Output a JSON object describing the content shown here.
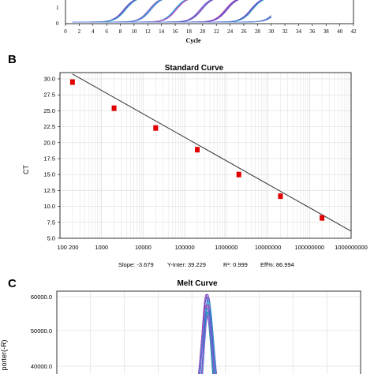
{
  "panels": {
    "a": {
      "xlabel": "Cycle",
      "ytick_labels": [
        "1",
        "0"
      ],
      "xtick_labels": [
        "0",
        "2",
        "4",
        "6",
        "8",
        "10",
        "12",
        "14",
        "16",
        "18",
        "20",
        "22",
        "24",
        "26",
        "28",
        "30",
        "32",
        "34",
        "36",
        "38",
        "40",
        "42"
      ]
    },
    "b": {
      "letter": "B",
      "title": "Standard Curve",
      "ylabel": "CT",
      "ytick_labels": [
        "30.0",
        "27.5",
        "25.0",
        "22.5",
        "20.0",
        "17.5",
        "15.0",
        "12.5",
        "10.0",
        "7.5",
        "5.0"
      ],
      "xtick_labels": [
        "100 200",
        "1000",
        "10000",
        "100000",
        "1000000",
        "10000000",
        "100000000",
        "1000000000"
      ],
      "stats": {
        "slope": "Slope: -3.679",
        "yinter": "Y-Inter: 39.229",
        "r2": "R²: 0.999",
        "eff": "Eff%: 86.994"
      }
    },
    "c": {
      "letter": "C",
      "title": "Melt Curve",
      "ylabel": "porter(-R)",
      "ytick_labels": [
        "60000.0",
        "50000.0",
        "40000.0"
      ]
    }
  },
  "colors": {
    "marker": "#e00000",
    "fit_line": "#333333",
    "grid": "#d4d4d4",
    "amp_curves": [
      "#4455cc",
      "#7a3fc0",
      "#2aa6c8",
      "#5b7fd8",
      "#c040b0"
    ]
  },
  "chart_data": [
    {
      "type": "line",
      "xlabel": "Cycle",
      "xlim": [
        0,
        42
      ],
      "ylim": [
        0,
        1.5
      ],
      "series": [
        {
          "ct": 7.3
        },
        {
          "ct": 11.0
        },
        {
          "ct": 14.7
        },
        {
          "ct": 18.4
        },
        {
          "ct": 22.1
        },
        {
          "ct": 25.8
        },
        {
          "ct": 29.6
        }
      ]
    },
    {
      "type": "scatter",
      "title": "Standard Curve",
      "ylabel": "CT",
      "x_scale": "log",
      "xlim": [
        100,
        1000000000
      ],
      "ylim": [
        5.0,
        30.0
      ],
      "x": [
        200,
        2000,
        20000,
        200000,
        2000000,
        20000000,
        200000000
      ],
      "y": [
        29.5,
        25.4,
        22.3,
        18.9,
        15.0,
        11.6,
        8.2
      ],
      "fit": {
        "slope": -3.679,
        "intercept": 39.229,
        "x_range": [
          200,
          1000000000
        ]
      }
    },
    {
      "type": "line",
      "title": "Melt Curve",
      "ylabel": "porter(-R)",
      "ylim": [
        38000,
        60000
      ],
      "peak": 60000
    }
  ]
}
